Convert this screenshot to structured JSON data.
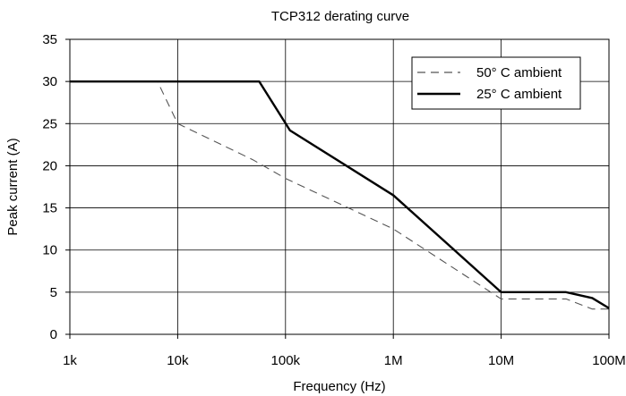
{
  "chart_data": {
    "type": "line",
    "title": "TCP312 derating curve",
    "xlabel": "Frequency (Hz)",
    "ylabel": "Peak current (A)",
    "x_scale": "log",
    "xlim": [
      1000,
      100000000
    ],
    "ylim": [
      0,
      35
    ],
    "x_ticks": [
      1000,
      10000,
      100000,
      1000000,
      10000000,
      100000000
    ],
    "x_tick_labels": [
      "1k",
      "10k",
      "100k",
      "1M",
      "10M",
      "100M"
    ],
    "y_ticks": [
      0,
      5,
      10,
      15,
      20,
      25,
      30,
      35
    ],
    "y_tick_labels": [
      "0",
      "5",
      "10",
      "15",
      "20",
      "25",
      "30",
      "35"
    ],
    "grid": {
      "x": true,
      "y": true
    },
    "legend_position": "top-right",
    "series": [
      {
        "name": "50° C ambient",
        "style": "dashed",
        "color": "#555555",
        "points": [
          [
            1000,
            30
          ],
          [
            6500,
            30
          ],
          [
            10000,
            25
          ],
          [
            50000,
            20.7
          ],
          [
            100000,
            18.5
          ],
          [
            1000000,
            12.5
          ],
          [
            10000000,
            4.2
          ],
          [
            40000000,
            4.2
          ],
          [
            70000000,
            3.0
          ],
          [
            100000000,
            3.0
          ]
        ]
      },
      {
        "name": "25° C ambient",
        "style": "solid",
        "color": "#000000",
        "points": [
          [
            1000,
            30
          ],
          [
            57000,
            30
          ],
          [
            110000,
            24.2
          ],
          [
            1000000,
            16.5
          ],
          [
            10000000,
            5.0
          ],
          [
            40000000,
            5.0
          ],
          [
            70000000,
            4.3
          ],
          [
            100000000,
            3.1
          ]
        ]
      }
    ]
  }
}
